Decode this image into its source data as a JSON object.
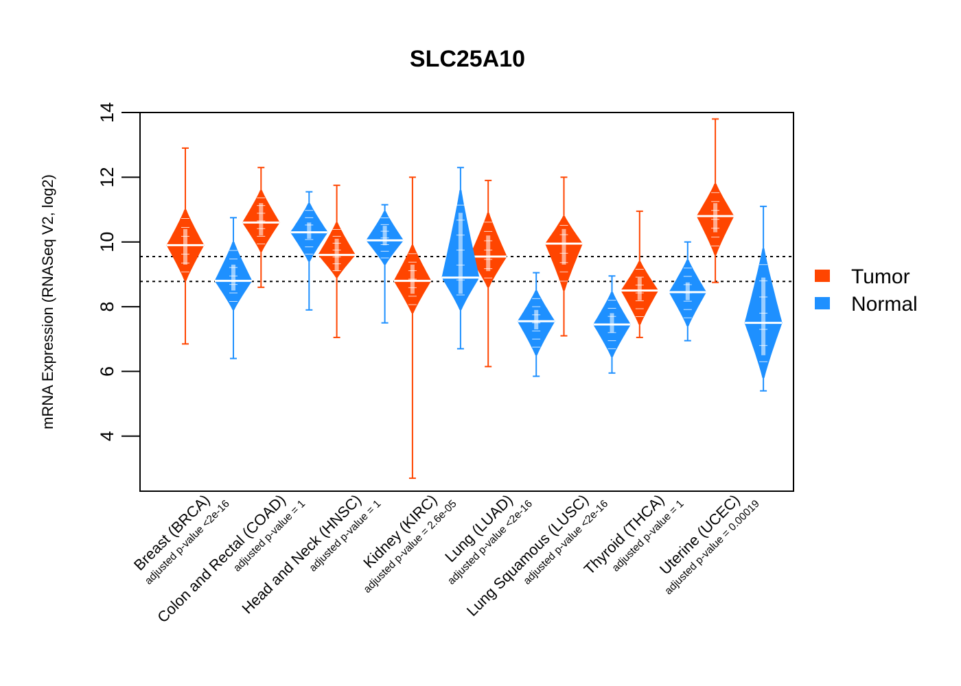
{
  "chart_data": {
    "type": "violin",
    "title": "SLC25A10",
    "xlabel": "",
    "ylabel": "mRNA Expression (RNASeq V2, log2)",
    "ylim": [
      2.3,
      14
    ],
    "yticks": [
      4,
      6,
      8,
      10,
      12,
      14
    ],
    "grid": false,
    "legend": {
      "position": "right",
      "entries": [
        {
          "name": "Tumor",
          "color": "#FF4500"
        },
        {
          "name": "Normal",
          "color": "#1E90FF"
        }
      ]
    },
    "reference_lines": [
      {
        "y": 9.55,
        "style": "dotted",
        "color": "#000000"
      },
      {
        "y": 8.78,
        "style": "dotted",
        "color": "#000000"
      }
    ],
    "categories": [
      {
        "name": "Breast (BRCA)",
        "pvalue_label": "adjusted p-value <2e-16"
      },
      {
        "name": "Colon and Rectal (COAD)",
        "pvalue_label": "adjusted p-value = 1"
      },
      {
        "name": "Head and Neck (HNSC)",
        "pvalue_label": "adjusted p-value = 1"
      },
      {
        "name": "Kidney (KIRC)",
        "pvalue_label": "adjusted p-value = 2.6e-05"
      },
      {
        "name": "Lung (LUAD)",
        "pvalue_label": "adjusted p-value <2e-16"
      },
      {
        "name": "Lung Squamous (LUSC)",
        "pvalue_label": "adjusted p-value <2e-16"
      },
      {
        "name": "Thyroid (THCA)",
        "pvalue_label": "adjusted p-value = 1"
      },
      {
        "name": "Uterine (UCEC)",
        "pvalue_label": "adjusted p-value = 0.00019"
      }
    ],
    "series": [
      {
        "name": "Tumor",
        "color": "#FF4500",
        "distributions": [
          {
            "min": 6.85,
            "q1": 9.3,
            "median": 9.9,
            "q3": 10.4,
            "max": 12.9,
            "body_low": 8.8,
            "body_high": 11.0
          },
          {
            "min": 8.6,
            "q1": 10.2,
            "median": 10.6,
            "q3": 11.2,
            "max": 12.3,
            "body_low": 9.7,
            "body_high": 11.6
          },
          {
            "min": 7.05,
            "q1": 9.1,
            "median": 9.6,
            "q3": 10.1,
            "max": 11.75,
            "body_low": 8.9,
            "body_high": 10.6
          },
          {
            "min": 2.7,
            "q1": 8.4,
            "median": 8.8,
            "q3": 9.3,
            "max": 12.0,
            "body_low": 7.8,
            "body_high": 9.9
          },
          {
            "min": 6.15,
            "q1": 9.1,
            "median": 9.55,
            "q3": 10.2,
            "max": 11.9,
            "body_low": 8.6,
            "body_high": 10.9
          },
          {
            "min": 7.1,
            "q1": 9.3,
            "median": 9.95,
            "q3": 10.4,
            "max": 12.0,
            "body_low": 8.5,
            "body_high": 10.8
          },
          {
            "min": 7.05,
            "q1": 8.2,
            "median": 8.5,
            "q3": 8.9,
            "max": 10.95,
            "body_low": 7.45,
            "body_high": 9.4
          },
          {
            "min": 8.75,
            "q1": 10.3,
            "median": 10.8,
            "q3": 11.2,
            "max": 13.8,
            "body_low": 9.6,
            "body_high": 11.8
          }
        ]
      },
      {
        "name": "Normal",
        "color": "#1E90FF",
        "distributions": [
          {
            "min": 6.4,
            "q1": 8.5,
            "median": 8.8,
            "q3": 9.3,
            "max": 10.75,
            "body_low": 7.9,
            "body_high": 10.0
          },
          {
            "min": 7.9,
            "q1": 10.1,
            "median": 10.3,
            "q3": 10.6,
            "max": 11.55,
            "body_low": 9.4,
            "body_high": 11.2
          },
          {
            "min": 7.5,
            "q1": 9.9,
            "median": 10.05,
            "q3": 10.5,
            "max": 11.15,
            "body_low": 9.3,
            "body_high": 10.95
          },
          {
            "min": 6.7,
            "q1": 8.4,
            "median": 8.9,
            "q3": 10.9,
            "max": 12.3,
            "body_low": 7.9,
            "body_high": 11.6
          },
          {
            "min": 5.85,
            "q1": 7.3,
            "median": 7.55,
            "q3": 7.9,
            "max": 9.05,
            "body_low": 6.5,
            "body_high": 8.5
          },
          {
            "min": 5.95,
            "q1": 7.2,
            "median": 7.45,
            "q3": 7.8,
            "max": 8.95,
            "body_low": 6.45,
            "body_high": 8.45
          },
          {
            "min": 6.95,
            "q1": 8.2,
            "median": 8.45,
            "q3": 8.75,
            "max": 10.0,
            "body_low": 7.4,
            "body_high": 9.45
          },
          {
            "min": 5.4,
            "q1": 6.5,
            "median": 7.5,
            "q3": 8.9,
            "max": 11.1,
            "body_low": 5.8,
            "body_high": 9.8
          }
        ]
      }
    ]
  }
}
